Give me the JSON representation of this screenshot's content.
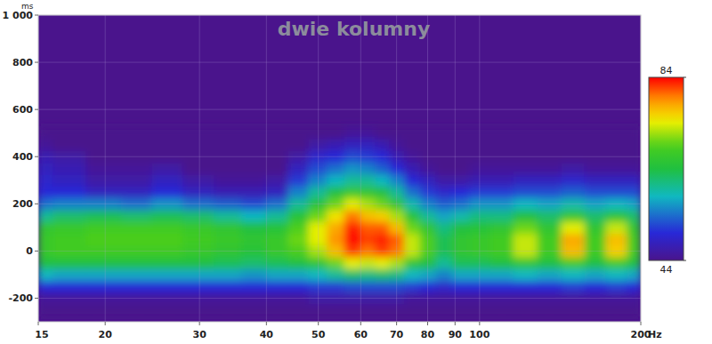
{
  "chart_data": {
    "type": "heatmap",
    "title": "dwie kolumny",
    "x_label": "Hz",
    "y_label": "ms",
    "log": "x",
    "grid": true,
    "xlim": [
      15,
      200
    ],
    "ylim": [
      -300,
      1000
    ],
    "xticks": [
      15,
      20,
      30,
      40,
      50,
      60,
      70,
      80,
      90,
      100,
      200
    ],
    "yticks": [
      {
        "value": 1000,
        "label": "1 000"
      },
      800,
      600,
      400,
      200,
      0,
      -200
    ],
    "color_range": [
      44,
      84
    ],
    "color_ticks": [
      44,
      84
    ],
    "x": [
      15,
      17,
      20,
      23,
      26,
      30,
      34,
      38,
      42,
      46,
      50,
      54,
      58,
      62,
      66,
      70,
      75,
      80,
      86,
      92,
      100,
      110,
      122,
      135,
      150,
      165,
      180,
      198
    ],
    "y": [
      -250,
      -200,
      -150,
      -100,
      -50,
      0,
      50,
      100,
      150,
      200,
      250,
      300,
      350,
      400,
      450,
      500
    ],
    "values": [
      [
        44,
        45,
        50,
        58,
        64,
        67,
        67,
        66,
        60,
        54,
        50,
        49,
        48,
        47,
        45,
        44
      ],
      [
        44,
        45,
        50,
        57,
        64,
        68,
        68,
        67,
        62,
        55,
        50,
        48,
        47,
        46,
        44,
        44
      ],
      [
        44,
        45,
        50,
        57,
        64,
        68,
        69,
        68,
        63,
        55,
        48,
        46,
        45,
        44,
        44,
        44
      ],
      [
        44,
        45,
        50,
        57,
        64,
        68,
        69,
        68,
        62,
        54,
        48,
        46,
        45,
        44,
        44,
        44
      ],
      [
        44,
        45,
        50,
        57,
        64,
        68,
        69,
        68,
        63,
        56,
        50,
        48,
        46,
        44,
        44,
        44
      ],
      [
        44,
        45,
        50,
        57,
        64,
        67,
        68,
        67,
        62,
        54,
        48,
        46,
        44,
        44,
        44,
        44
      ],
      [
        44,
        45,
        50,
        57,
        63,
        66,
        67,
        66,
        60,
        53,
        47,
        45,
        44,
        44,
        44,
        44
      ],
      [
        44,
        45,
        50,
        56,
        62,
        65,
        66,
        64,
        58,
        52,
        47,
        45,
        44,
        44,
        44,
        44
      ],
      [
        44,
        45,
        50,
        57,
        63,
        67,
        67,
        65,
        60,
        54,
        48,
        46,
        44,
        44,
        44,
        44
      ],
      [
        44,
        45,
        50,
        57,
        64,
        69,
        70,
        69,
        65,
        60,
        55,
        51,
        48,
        46,
        44,
        44
      ],
      [
        44,
        46,
        51,
        58,
        66,
        72,
        74,
        74,
        70,
        65,
        60,
        55,
        52,
        49,
        46,
        44
      ],
      [
        44,
        46,
        51,
        60,
        70,
        77,
        79,
        78,
        75,
        70,
        64,
        58,
        54,
        50,
        47,
        44
      ],
      [
        44,
        46,
        52,
        62,
        74,
        82,
        84,
        83,
        80,
        74,
        67,
        60,
        56,
        52,
        48,
        45
      ],
      [
        44,
        46,
        52,
        61,
        73,
        80,
        82,
        81,
        77,
        72,
        66,
        60,
        55,
        51,
        48,
        45
      ],
      [
        44,
        46,
        52,
        62,
        74,
        82,
        83,
        81,
        76,
        70,
        64,
        58,
        53,
        50,
        47,
        44
      ],
      [
        44,
        46,
        52,
        61,
        72,
        80,
        81,
        77,
        72,
        66,
        60,
        55,
        50,
        47,
        45,
        44
      ],
      [
        44,
        45,
        51,
        58,
        66,
        73,
        73,
        70,
        65,
        59,
        54,
        50,
        47,
        45,
        44,
        44
      ],
      [
        44,
        45,
        50,
        57,
        64,
        69,
        69,
        66,
        60,
        55,
        51,
        48,
        45,
        44,
        44,
        44
      ],
      [
        44,
        45,
        49,
        55,
        60,
        63,
        63,
        61,
        57,
        53,
        49,
        46,
        44,
        44,
        44,
        44
      ],
      [
        44,
        45,
        50,
        57,
        63,
        66,
        66,
        64,
        59,
        54,
        50,
        46,
        44,
        44,
        44,
        44
      ],
      [
        44,
        45,
        50,
        57,
        63,
        67,
        67,
        65,
        61,
        56,
        51,
        47,
        45,
        44,
        44,
        44
      ],
      [
        44,
        45,
        50,
        57,
        64,
        68,
        68,
        66,
        61,
        56,
        51,
        47,
        45,
        44,
        44,
        44
      ],
      [
        44,
        45,
        50,
        58,
        66,
        73,
        73,
        70,
        64,
        58,
        52,
        48,
        45,
        44,
        44,
        44
      ],
      [
        44,
        45,
        50,
        57,
        64,
        68,
        68,
        66,
        62,
        57,
        52,
        48,
        45,
        44,
        44,
        44
      ],
      [
        44,
        45,
        51,
        58,
        68,
        77,
        78,
        74,
        66,
        59,
        53,
        49,
        46,
        44,
        44,
        44
      ],
      [
        44,
        45,
        50,
        57,
        64,
        68,
        68,
        66,
        62,
        57,
        52,
        48,
        45,
        44,
        44,
        44
      ],
      [
        44,
        45,
        51,
        58,
        68,
        76,
        77,
        73,
        65,
        58,
        52,
        48,
        45,
        44,
        44,
        44
      ],
      [
        44,
        45,
        50,
        57,
        64,
        68,
        68,
        66,
        62,
        57,
        52,
        48,
        45,
        44,
        44,
        44
      ]
    ]
  }
}
